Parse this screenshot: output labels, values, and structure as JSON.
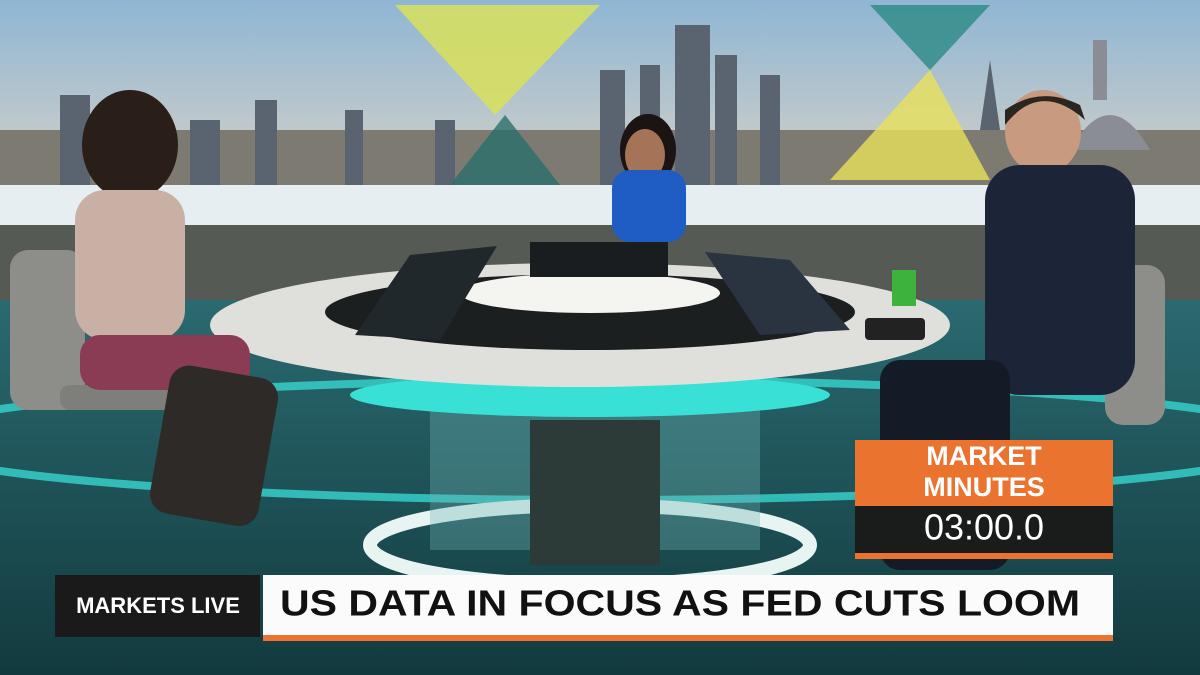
{
  "countdown": {
    "title_lines": [
      "MARKET",
      "MINUTES"
    ],
    "timer": "03:00.0"
  },
  "lower_third": {
    "show": "MARKETS LIVE",
    "headline": "US DATA IN FOCUS AS FED CUTS LOOM"
  }
}
